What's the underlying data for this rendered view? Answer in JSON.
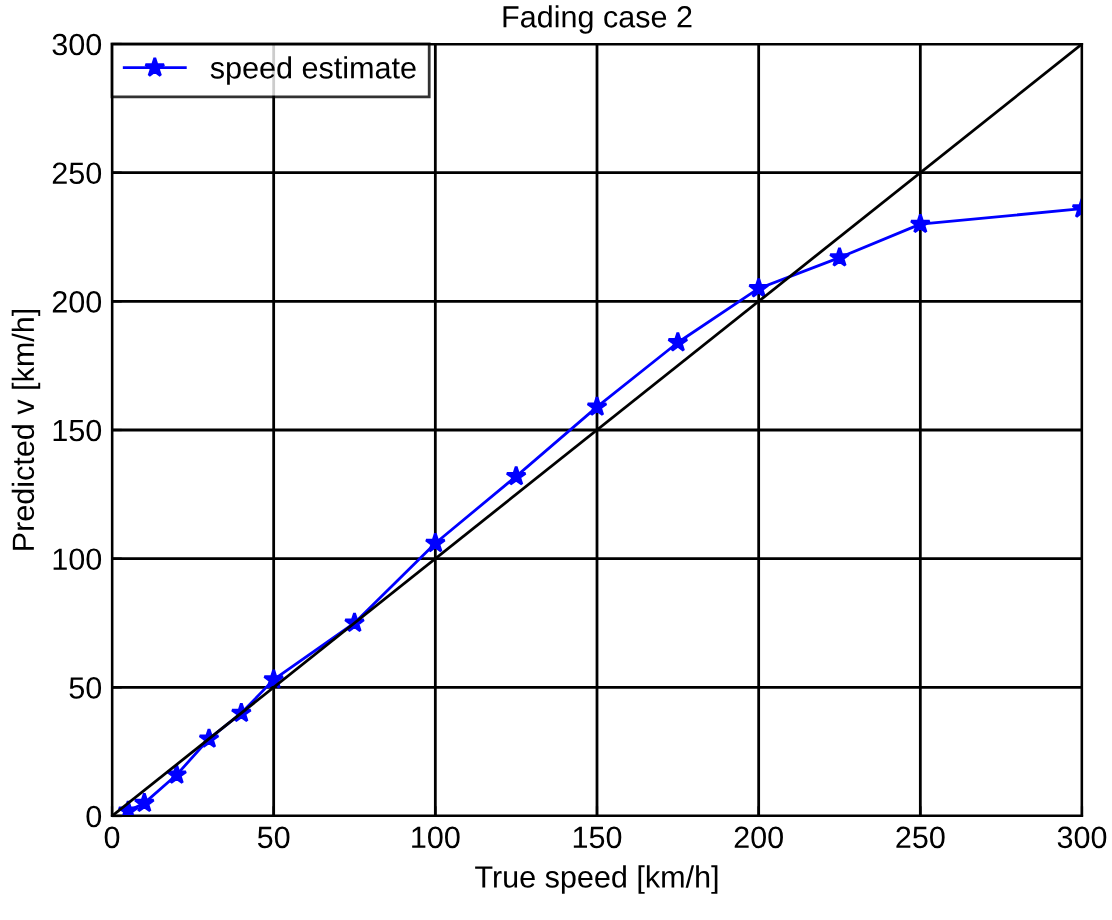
{
  "chart_data": {
    "type": "line",
    "title": "Fading case 2",
    "xlabel": "True speed [km/h]",
    "ylabel": "Predicted v [km/h]",
    "xlim": [
      0,
      300
    ],
    "ylim": [
      0,
      300
    ],
    "xticks": [
      0,
      50,
      100,
      150,
      200,
      250,
      300
    ],
    "yticks": [
      0,
      50,
      100,
      150,
      200,
      250,
      300
    ],
    "grid": true,
    "legend": "top left",
    "series": [
      {
        "name": "speed estimate",
        "color": "#0000ff",
        "marker": "star",
        "x": [
          5,
          10,
          20,
          30,
          40,
          50,
          75,
          100,
          125,
          150,
          175,
          200,
          225,
          250,
          300
        ],
        "values": [
          2,
          5,
          16,
          30,
          40,
          53,
          75,
          106,
          132,
          159,
          184,
          205,
          217,
          230,
          236
        ]
      },
      {
        "color": "#000000",
        "marker": "none",
        "x": [
          0,
          300
        ],
        "values": [
          0,
          300
        ]
      }
    ]
  }
}
